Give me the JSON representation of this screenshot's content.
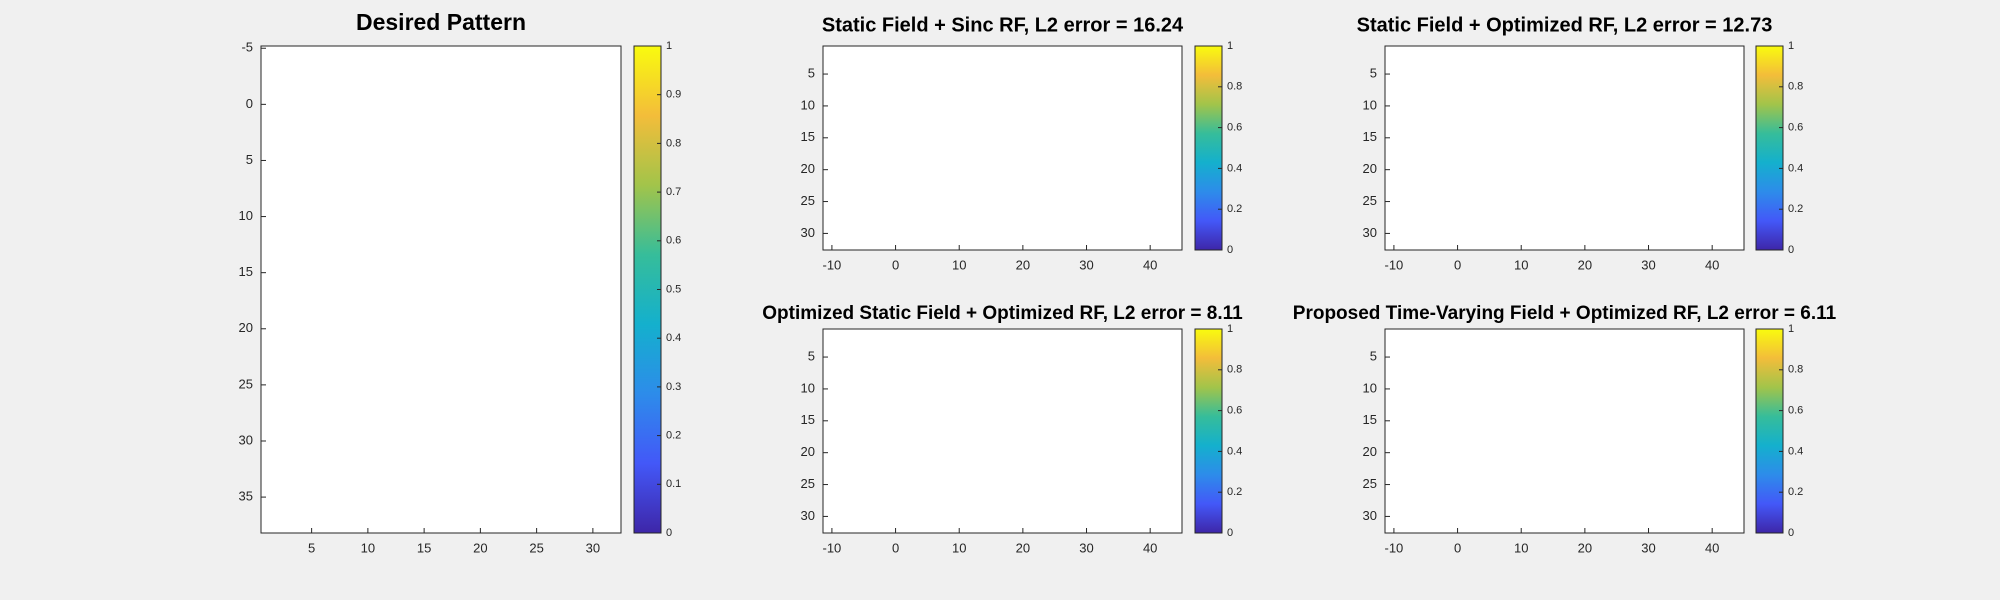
{
  "chart_data": [
    {
      "type": "heatmap",
      "title": "Desired Pattern",
      "xlim": [
        0.5,
        32.5
      ],
      "ylim": [
        -5.2,
        38.2
      ],
      "xticks": [
        5,
        10,
        15,
        20,
        25,
        30
      ],
      "yticks": [
        -5,
        0,
        5,
        10,
        15,
        20,
        25,
        30,
        35
      ],
      "y_reversed": true,
      "colormap": [
        "#3e26a8",
        "#4358f8",
        "#2d8cea",
        "#14b0cd",
        "#36bd9a",
        "#a2c44a",
        "#f3bd3a",
        "#f9fb0e"
      ],
      "colorbar": {
        "clim": [
          0,
          1
        ],
        "ticks": [
          0,
          0.1,
          0.2,
          0.3,
          0.4,
          0.5,
          0.6,
          0.7,
          0.8,
          0.9,
          1
        ]
      }
    },
    {
      "type": "heatmap",
      "title": "Static Field + Sinc RF, L2 error = 16.24",
      "xlim": [
        -11.4,
        45
      ],
      "ylim": [
        0.6,
        32.6
      ],
      "xticks": [
        -10,
        0,
        10,
        20,
        30,
        40
      ],
      "yticks": [
        5,
        10,
        15,
        20,
        25,
        30
      ],
      "y_reversed": true,
      "colormap": [
        "#3e26a8",
        "#4358f8",
        "#2d8cea",
        "#14b0cd",
        "#36bd9a",
        "#a2c44a",
        "#f3bd3a",
        "#f9fb0e"
      ],
      "colorbar": {
        "clim": [
          0,
          1
        ],
        "ticks": [
          0,
          0.2,
          0.4,
          0.6,
          0.8,
          1
        ]
      }
    },
    {
      "type": "heatmap",
      "title": "Static Field + Optimized RF, L2 error = 12.73",
      "xlim": [
        -11.4,
        45
      ],
      "ylim": [
        0.6,
        32.6
      ],
      "xticks": [
        -10,
        0,
        10,
        20,
        30,
        40
      ],
      "yticks": [
        5,
        10,
        15,
        20,
        25,
        30
      ],
      "y_reversed": true,
      "colormap": [
        "#3e26a8",
        "#4358f8",
        "#2d8cea",
        "#14b0cd",
        "#36bd9a",
        "#a2c44a",
        "#f3bd3a",
        "#f9fb0e"
      ],
      "colorbar": {
        "clim": [
          0,
          1
        ],
        "ticks": [
          0,
          0.2,
          0.4,
          0.6,
          0.8,
          1
        ]
      }
    },
    {
      "type": "heatmap",
      "title": "Optimized Static Field + Optimized RF, L2 error = 8.11",
      "xlim": [
        -11.4,
        45
      ],
      "ylim": [
        0.6,
        32.6
      ],
      "xticks": [
        -10,
        0,
        10,
        20,
        30,
        40
      ],
      "yticks": [
        5,
        10,
        15,
        20,
        25,
        30
      ],
      "y_reversed": true,
      "colormap": [
        "#3e26a8",
        "#4358f8",
        "#2d8cea",
        "#14b0cd",
        "#36bd9a",
        "#a2c44a",
        "#f3bd3a",
        "#f9fb0e"
      ],
      "colorbar": {
        "clim": [
          0,
          1
        ],
        "ticks": [
          0,
          0.2,
          0.4,
          0.6,
          0.8,
          1
        ]
      }
    },
    {
      "type": "heatmap",
      "title": "Proposed Time-Varying Field + Optimized RF, L2 error = 6.11",
      "xlim": [
        -11.4,
        45
      ],
      "ylim": [
        0.6,
        32.6
      ],
      "xticks": [
        -10,
        0,
        10,
        20,
        30,
        40
      ],
      "yticks": [
        5,
        10,
        15,
        20,
        25,
        30
      ],
      "y_reversed": true,
      "colormap": [
        "#3e26a8",
        "#4358f8",
        "#2d8cea",
        "#14b0cd",
        "#36bd9a",
        "#a2c44a",
        "#f3bd3a",
        "#f9fb0e"
      ],
      "colorbar": {
        "clim": [
          0,
          1
        ],
        "ticks": [
          0,
          0.2,
          0.4,
          0.6,
          0.8,
          1
        ]
      }
    }
  ]
}
